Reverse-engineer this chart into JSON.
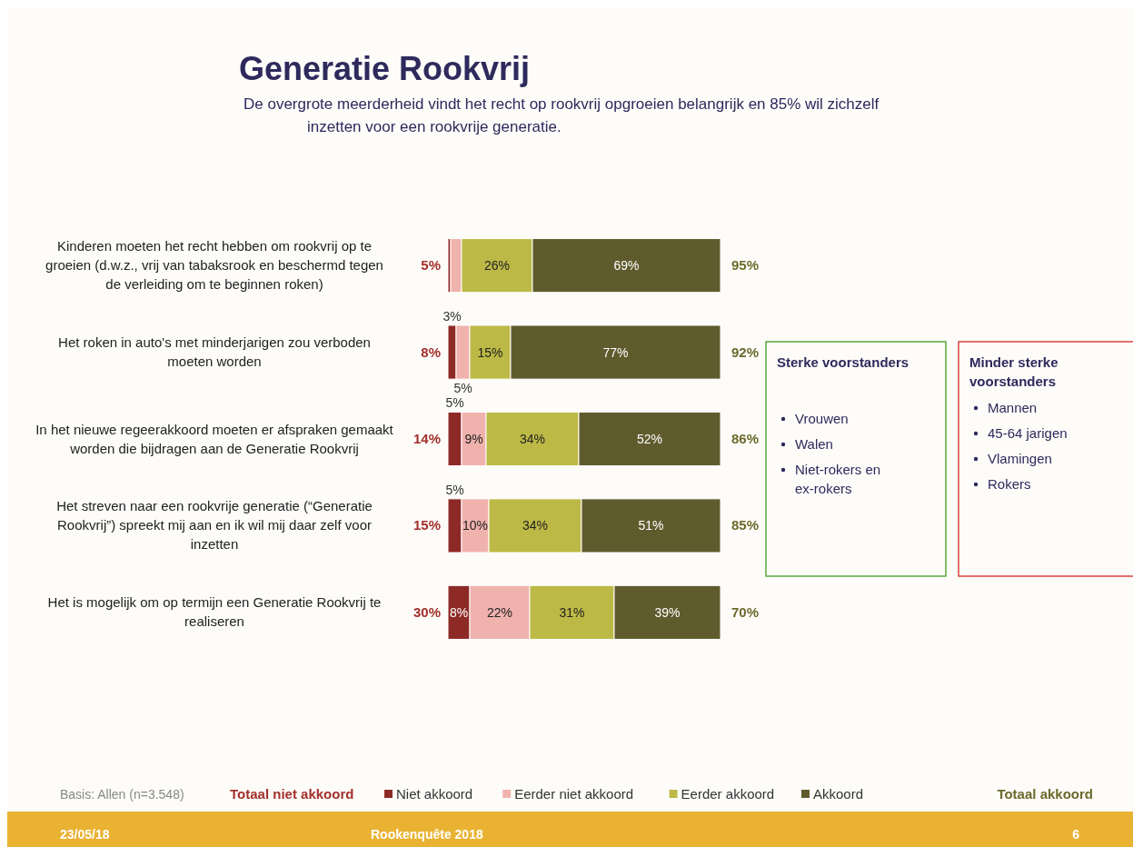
{
  "chart_data": [
    {
      "type": "bar",
      "orientation": "horizontal",
      "stacked": true,
      "title": "Generatie Rookvrij",
      "subtitle": "De overgrote meerderheid vindt het recht op rookvrij opgroeien belangrijk en 85% wil zichzelf inzetten voor een rookvrije generatie.",
      "categories": [
        "Kinderen moeten het recht hebben om rookvrij op te groeien (d.w.z., vrij van tabaksrook en beschermd tegen de verleiding om te beginnen roken)",
        "Het roken in auto's met minderjarigen zou verboden moeten worden",
        "In het nieuwe regeerakkoord moeten er afspraken gemaakt worden die bijdragen aan de Generatie Rookvrij",
        "Het streven naar een rookvrije generatie (“Generatie Rookvrij”) spreekt mij aan en ik wil mij daar zelf voor inzetten",
        "Het is mogelijk om op termijn een Generatie Rookvrij te realiseren"
      ],
      "series": [
        {
          "name": "Niet akkoord",
          "color": "#8e2a26",
          "values": [
            1,
            3,
            5,
            5,
            8
          ],
          "value_labels": [
            null,
            "3%",
            "5%",
            "5%",
            "8%"
          ]
        },
        {
          "name": "Eerder niet akkoord",
          "color": "#f0b2ad",
          "values": [
            4,
            5,
            9,
            10,
            22
          ],
          "value_labels": [
            null,
            "5%",
            "9%",
            "10%",
            "22%"
          ]
        },
        {
          "name": "Eerder akkoord",
          "color": "#bdb946",
          "values": [
            26,
            15,
            34,
            34,
            31
          ],
          "value_labels": [
            "26%",
            "15%",
            "34%",
            "34%",
            "31%"
          ]
        },
        {
          "name": "Akkoord",
          "color": "#5f5b2d",
          "values": [
            69,
            77,
            52,
            51,
            39
          ],
          "value_labels": [
            "69%",
            "77%",
            "52%",
            "51%",
            "39%"
          ]
        }
      ],
      "xlim": [
        0,
        100
      ],
      "legend": "bottom",
      "annotations": [
        "5%",
        "8%",
        "14%",
        "15%",
        "30%",
        "95%",
        "92%",
        "86%",
        "85%",
        "70%",
        "Basis: Allen (n=3.548)",
        "Totaal niet akkoord",
        "Totaal akkoord",
        "23/05/18",
        "Rookenquête 2018",
        "6"
      ]
    },
    {
      "type": "other",
      "title": "Sterke voorstanders",
      "color": "#5aa83c",
      "annotations": [
        "Vrouwen",
        "Walen",
        "Niet-rokers en ex-rokers"
      ]
    },
    {
      "type": "other",
      "title": "Minder sterke voorstanders",
      "color": "#d9443a",
      "annotations": [
        "Mannen",
        "45-64 jarigen",
        "Vlamingen",
        "Rokers"
      ]
    }
  ]
}
